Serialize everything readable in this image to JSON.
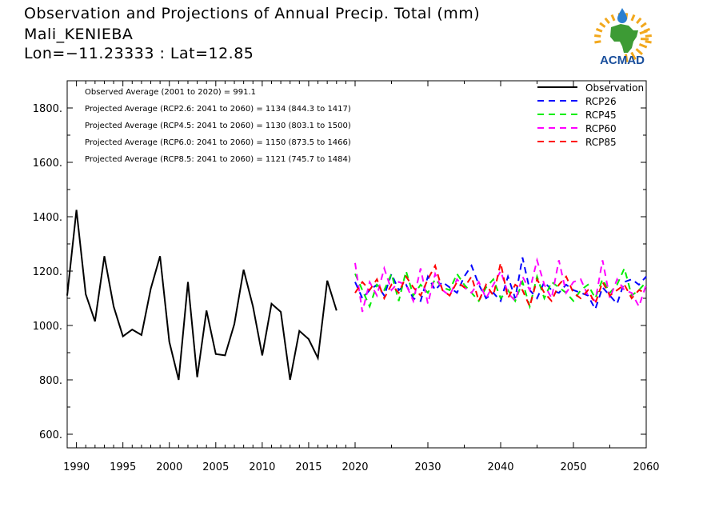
{
  "header": {
    "title": "Observation and Projections of Annual Precip. Total (mm)",
    "location": "Mali_KENIEBA",
    "coords": "Lon=−11.23333 : Lat=12.85"
  },
  "logo": {
    "text": "ACMAD",
    "icon": "africa-map-sun-logo",
    "colors": {
      "text": "#1a4f9c",
      "africa": "#3d9b35",
      "sun": "#f2a81d",
      "drop": "#2a7fd0"
    }
  },
  "chart_data": {
    "type": "line",
    "xlim": [
      1989,
      2060
    ],
    "ylim": [
      550,
      1900
    ],
    "x_ticks_major": [
      1990,
      1995,
      2000,
      2005,
      2010,
      2015,
      2020,
      2030,
      2040,
      2050,
      2060
    ],
    "y_ticks_labels": [
      "600.",
      "800.",
      "1000.",
      "1200.",
      "1400.",
      "1600.",
      "1800."
    ],
    "y_ticks_values": [
      600,
      800,
      1000,
      1200,
      1400,
      1600,
      1800
    ],
    "legend_position": "top-right",
    "annotations": [
      "Observed Average (2001 to 2020) = 991.1",
      "Projected Average (RCP2.6: 2041 to 2060) = 1134 (844.3 to 1417)",
      "Projected Average (RCP4.5: 2041 to 2060) = 1130 (803.1 to 1500)",
      "Projected Average (RCP6.0: 2041 to 2060) = 1150 (873.5 to 1466)",
      "Projected Average (RCP8.5: 2041 to 2060) = 1121 (745.7 to 1484)"
    ],
    "series": [
      {
        "name": "Observation",
        "color": "#000000",
        "dash": "none",
        "x": [
          1989,
          1990,
          1991,
          1992,
          1993,
          1994,
          1995,
          1996,
          1997,
          1998,
          1999,
          2000,
          2001,
          2002,
          2003,
          2004,
          2005,
          2006,
          2007,
          2008,
          2009,
          2010,
          2011,
          2012,
          2013,
          2014,
          2015,
          2016,
          2017,
          2018,
          2019,
          2020
        ],
        "values": [
          1110,
          1425,
          1115,
          1015,
          1255,
          1070,
          960,
          985,
          965,
          1135,
          1255,
          940,
          800,
          1160,
          810,
          1055,
          895,
          890,
          1005,
          1205,
          1070,
          890,
          1080,
          1050,
          800,
          980,
          950,
          880,
          1165,
          1055,
          null,
          null
        ]
      },
      {
        "name": "RCP26",
        "color": "#0000ff",
        "dash": "8,6",
        "x": [
          2020,
          2021,
          2022,
          2023,
          2024,
          2025,
          2026,
          2027,
          2028,
          2029,
          2030,
          2031,
          2032,
          2033,
          2034,
          2035,
          2036,
          2037,
          2038,
          2039,
          2040,
          2041,
          2042,
          2043,
          2044,
          2045,
          2046,
          2047,
          2048,
          2049,
          2050,
          2051,
          2052,
          2053,
          2054,
          2055,
          2056,
          2057,
          2058,
          2059,
          2060
        ],
        "values": [
          1160,
          1100,
          1130,
          1150,
          1110,
          1190,
          1130,
          1150,
          1100,
          1090,
          1180,
          1130,
          1160,
          1140,
          1120,
          1180,
          1220,
          1150,
          1100,
          1120,
          1090,
          1180,
          1100,
          1250,
          1130,
          1100,
          1160,
          1130,
          1120,
          1150,
          1130,
          1120,
          1110,
          1060,
          1140,
          1110,
          1080,
          1160,
          1170,
          1150,
          1180
        ]
      },
      {
        "name": "RCP45",
        "color": "#00ee00",
        "dash": "8,6",
        "x": [
          2020,
          2021,
          2022,
          2023,
          2024,
          2025,
          2026,
          2027,
          2028,
          2029,
          2030,
          2031,
          2032,
          2033,
          2034,
          2035,
          2036,
          2037,
          2038,
          2039,
          2040,
          2041,
          2042,
          2043,
          2044,
          2045,
          2046,
          2047,
          2048,
          2049,
          2050,
          2051,
          2052,
          2053,
          2054,
          2055,
          2056,
          2057,
          2058,
          2059,
          2060
        ],
        "values": [
          1190,
          1130,
          1070,
          1150,
          1130,
          1190,
          1090,
          1200,
          1110,
          1150,
          1120,
          1170,
          1140,
          1130,
          1190,
          1150,
          1120,
          1090,
          1140,
          1170,
          1100,
          1130,
          1090,
          1160,
          1070,
          1180,
          1100,
          1160,
          1140,
          1120,
          1090,
          1130,
          1150,
          1100,
          1170,
          1120,
          1150,
          1210,
          1110,
          1130,
          1160
        ]
      },
      {
        "name": "RCP60",
        "color": "#ff00ff",
        "dash": "8,6",
        "x": [
          2020,
          2021,
          2022,
          2023,
          2024,
          2025,
          2026,
          2027,
          2028,
          2029,
          2030,
          2031,
          2032,
          2033,
          2034,
          2035,
          2036,
          2037,
          2038,
          2039,
          2040,
          2041,
          2042,
          2043,
          2044,
          2045,
          2046,
          2047,
          2048,
          2049,
          2050,
          2051,
          2052,
          2053,
          2054,
          2055,
          2056,
          2057,
          2058,
          2059,
          2060
        ],
        "values": [
          1230,
          1050,
          1160,
          1110,
          1210,
          1130,
          1160,
          1150,
          1090,
          1210,
          1080,
          1190,
          1130,
          1110,
          1170,
          1140,
          1120,
          1160,
          1100,
          1150,
          1200,
          1120,
          1090,
          1180,
          1130,
          1240,
          1150,
          1100,
          1240,
          1120,
          1160,
          1170,
          1110,
          1090,
          1240,
          1100,
          1170,
          1130,
          1120,
          1070,
          1150
        ]
      },
      {
        "name": "RCP85",
        "color": "#ff0000",
        "dash": "8,6",
        "x": [
          2020,
          2021,
          2022,
          2023,
          2024,
          2025,
          2026,
          2027,
          2028,
          2029,
          2030,
          2031,
          2032,
          2033,
          2034,
          2035,
          2036,
          2037,
          2038,
          2039,
          2040,
          2041,
          2042,
          2043,
          2044,
          2045,
          2046,
          2047,
          2048,
          2049,
          2050,
          2051,
          2052,
          2053,
          2054,
          2055,
          2056,
          2057,
          2058,
          2059,
          2060
        ],
        "values": [
          1120,
          1160,
          1130,
          1170,
          1100,
          1150,
          1120,
          1180,
          1140,
          1110,
          1170,
          1220,
          1130,
          1110,
          1160,
          1140,
          1180,
          1090,
          1150,
          1110,
          1230,
          1100,
          1150,
          1130,
          1070,
          1170,
          1120,
          1090,
          1150,
          1180,
          1120,
          1100,
          1130,
          1080,
          1160,
          1110,
          1130,
          1150,
          1100,
          1130,
          1120
        ]
      }
    ]
  }
}
